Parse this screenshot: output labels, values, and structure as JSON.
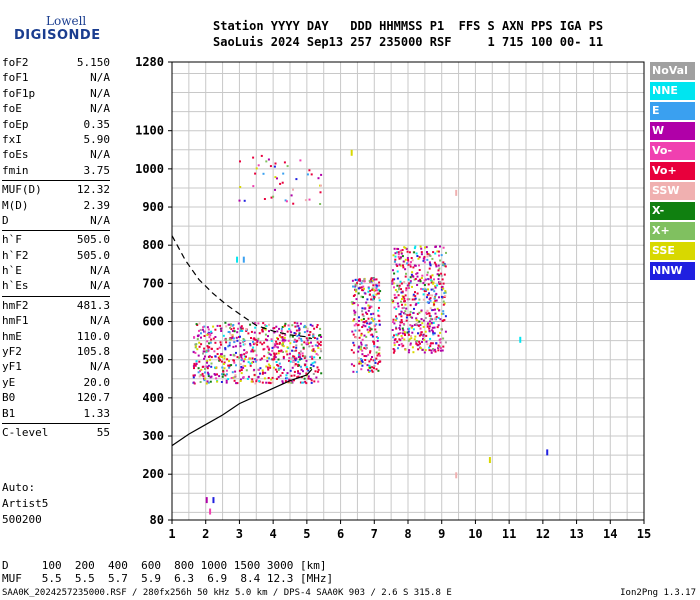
{
  "logo": {
    "line1": "Lowell",
    "line2": "DIGISONDE"
  },
  "header": {
    "row1": "Station YYYY DAY   DDD HHMMSS P1  FFS S AXN PPS IGA PS",
    "row2": "SaoLuis 2024 Sep13 257 235000 RSF     1 715 100 00- 11"
  },
  "params": {
    "group1": [
      {
        "k": "foF2",
        "v": "5.150"
      },
      {
        "k": "foF1",
        "v": "N/A"
      },
      {
        "k": "foF1p",
        "v": "N/A"
      },
      {
        "k": "foE",
        "v": "N/A"
      },
      {
        "k": "foEp",
        "v": "0.35"
      },
      {
        "k": "fxI",
        "v": "5.90"
      },
      {
        "k": "foEs",
        "v": "N/A"
      },
      {
        "k": "fmin",
        "v": "3.75"
      }
    ],
    "group2": [
      {
        "k": "MUF(D)",
        "v": "12.32"
      },
      {
        "k": "M(D)",
        "v": "2.39"
      },
      {
        "k": "D",
        "v": "N/A"
      }
    ],
    "group3": [
      {
        "k": "h`F",
        "v": "505.0"
      },
      {
        "k": "h`F2",
        "v": "505.0"
      },
      {
        "k": "h`E",
        "v": "N/A"
      },
      {
        "k": "h`Es",
        "v": "N/A"
      }
    ],
    "group4": [
      {
        "k": "hmF2",
        "v": "481.3"
      },
      {
        "k": "hmF1",
        "v": "N/A"
      },
      {
        "k": "hmE",
        "v": "110.0"
      },
      {
        "k": "yF2",
        "v": "105.8"
      },
      {
        "k": "yF1",
        "v": "N/A"
      },
      {
        "k": "yE",
        "v": "20.0"
      },
      {
        "k": "B0",
        "v": "120.7"
      },
      {
        "k": "B1",
        "v": "1.33"
      }
    ],
    "group5": [
      {
        "k": "C-level",
        "v": "55"
      }
    ]
  },
  "auto": {
    "l1": "Auto:",
    "l2": "Artist5",
    "l3": "500200"
  },
  "footer": {
    "d_row": "D     100  200  400  600  800 1000 1500 3000 [km]",
    "muf_row": "MUF   5.5  5.5  5.7  5.9  6.3  6.9  8.4 12.3 [MHz]",
    "bottom_left": "SAA0K_2024257235000.RSF / 280fx256h 50 kHz 5.0 km / DPS-4 SAA0K 903 / 2.6 S 315.8 E",
    "bottom_right": "Ion2Png 1.3.17"
  },
  "legend": [
    {
      "label": "NoVal",
      "color": "#a0a0a0"
    },
    {
      "label": "NNE",
      "color": "#00e5f0"
    },
    {
      "label": "E",
      "color": "#3aa0f0"
    },
    {
      "label": "W",
      "color": "#b000a8"
    },
    {
      "label": "Vo-",
      "color": "#f040b0"
    },
    {
      "label": "Vo+",
      "color": "#e8003c"
    },
    {
      "label": "SSW",
      "color": "#f0b0b0"
    },
    {
      "label": "X-",
      "color": "#108010"
    },
    {
      "label": "X+",
      "color": "#80c060"
    },
    {
      "label": "SSE",
      "color": "#d8d800"
    },
    {
      "label": "NNW",
      "color": "#2020e0"
    }
  ],
  "chart_data": {
    "type": "scatter",
    "title": "",
    "xlabel": "",
    "ylabel": "",
    "xlim": [
      1,
      15
    ],
    "ylim": [
      80,
      1280
    ],
    "x_ticks": [
      "1",
      "2",
      "3",
      "4",
      "5",
      "6",
      "7",
      "8",
      "9",
      "10",
      "11",
      "12",
      "13",
      "14",
      "15"
    ],
    "y_ticks": [
      {
        "v": 80,
        "label": "80"
      },
      {
        "v": 200,
        "label": "200"
      },
      {
        "v": 300,
        "label": "300"
      },
      {
        "v": 400,
        "label": "400"
      },
      {
        "v": 500,
        "label": "500"
      },
      {
        "v": 600,
        "label": "600"
      },
      {
        "v": 700,
        "label": "700"
      },
      {
        "v": 800,
        "label": "800"
      },
      {
        "v": 900,
        "label": "900"
      },
      {
        "v": 1000,
        "label": "1000"
      },
      {
        "v": 1100,
        "label": "1100"
      },
      {
        "v": 1280,
        "label": "1280"
      }
    ],
    "grid": true,
    "profile_curve": {
      "name": "",
      "x": [
        1.0,
        1.5,
        2.0,
        2.5,
        3.0,
        3.5,
        4.0,
        4.5,
        5.0,
        5.15
      ],
      "y": [
        275,
        305,
        330,
        355,
        385,
        405,
        425,
        445,
        460,
        475
      ]
    },
    "dashed_curve": {
      "name": "",
      "x": [
        1.0,
        1.4,
        1.8,
        2.2,
        2.6,
        3.0,
        3.5,
        4.0,
        4.5,
        5.0,
        5.15
      ],
      "y": [
        825,
        760,
        710,
        675,
        645,
        620,
        590,
        575,
        565,
        560,
        555
      ]
    },
    "clusters": [
      {
        "fx": [
          1.6,
          5.4
        ],
        "hy": [
          440,
          600
        ],
        "n": 700
      },
      {
        "fx": [
          6.3,
          7.15
        ],
        "hy": [
          470,
          720
        ],
        "n": 260
      },
      {
        "fx": [
          7.5,
          9.1
        ],
        "hy": [
          520,
          800
        ],
        "n": 520
      },
      {
        "fx": [
          2.9,
          5.5
        ],
        "hy": [
          910,
          1040
        ],
        "n": 45
      }
    ],
    "isolated": [
      {
        "x": 9.4,
        "y": 945,
        "color": "#f0b0b0"
      },
      {
        "x": 9.4,
        "y": 205,
        "color": "#f0b0b0"
      },
      {
        "x": 10.4,
        "y": 245,
        "color": "#d8d800"
      },
      {
        "x": 11.3,
        "y": 560,
        "color": "#00e5f0"
      },
      {
        "x": 12.1,
        "y": 265,
        "color": "#2020e0"
      },
      {
        "x": 2.0,
        "y": 140,
        "color": "#b000a8"
      },
      {
        "x": 2.2,
        "y": 140,
        "color": "#2020e0"
      },
      {
        "x": 2.1,
        "y": 110,
        "color": "#f040b0"
      },
      {
        "x": 2.9,
        "y": 770,
        "color": "#00e5f0"
      },
      {
        "x": 3.1,
        "y": 770,
        "color": "#3aa0f0"
      },
      {
        "x": 6.3,
        "y": 1050,
        "color": "#d8d800"
      }
    ]
  }
}
